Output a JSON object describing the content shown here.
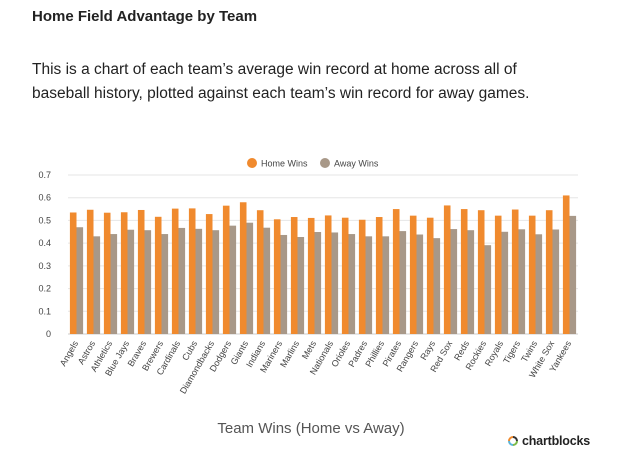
{
  "page": {
    "title": "Home Field Advantage by Team",
    "description": "This is a chart of each team’s average win record at home across all of baseball history, plotted against each team’s win record for away games."
  },
  "brand": {
    "name": "chartblocks"
  },
  "colors": {
    "home": "#f08a2e",
    "away": "#a89888",
    "grid": "#e6e6e6",
    "axis": "#cccccc"
  },
  "chart_data": {
    "type": "bar",
    "xlabel": "Team Wins (Home vs Away)",
    "ylabel": "",
    "ylim": [
      0,
      0.7
    ],
    "yticks": [
      0,
      0.1,
      0.2,
      0.3,
      0.4,
      0.5,
      0.6,
      0.7
    ],
    "grid": true,
    "legend_position": "top-center",
    "categories": [
      "Angels",
      "Astros",
      "Athletics",
      "Blue Jays",
      "Braves",
      "Brewers",
      "Cardinals",
      "Cubs",
      "Diamondbacks",
      "Dodgers",
      "Giants",
      "Indians",
      "Mariners",
      "Marlins",
      "Mets",
      "Nationals",
      "Orioles",
      "Padres",
      "Phillies",
      "Pirates",
      "Rangers",
      "Rays",
      "Red Sox",
      "Reds",
      "Rockies",
      "Royals",
      "Tigers",
      "Twins",
      "White Sox",
      "Yankees"
    ],
    "series": [
      {
        "name": "Home Wins",
        "color": "#f08a2e",
        "values": [
          0.535,
          0.547,
          0.534,
          0.536,
          0.546,
          0.516,
          0.552,
          0.553,
          0.528,
          0.565,
          0.58,
          0.545,
          0.505,
          0.515,
          0.511,
          0.522,
          0.512,
          0.503,
          0.515,
          0.55,
          0.521,
          0.512,
          0.566,
          0.55,
          0.545,
          0.521,
          0.548,
          0.521,
          0.545,
          0.61
        ]
      },
      {
        "name": "Away Wins",
        "color": "#a89888",
        "values": [
          0.47,
          0.43,
          0.44,
          0.459,
          0.457,
          0.44,
          0.467,
          0.463,
          0.457,
          0.477,
          0.49,
          0.468,
          0.436,
          0.427,
          0.449,
          0.447,
          0.44,
          0.43,
          0.43,
          0.453,
          0.438,
          0.422,
          0.462,
          0.457,
          0.391,
          0.45,
          0.461,
          0.439,
          0.46,
          0.52
        ]
      }
    ]
  }
}
